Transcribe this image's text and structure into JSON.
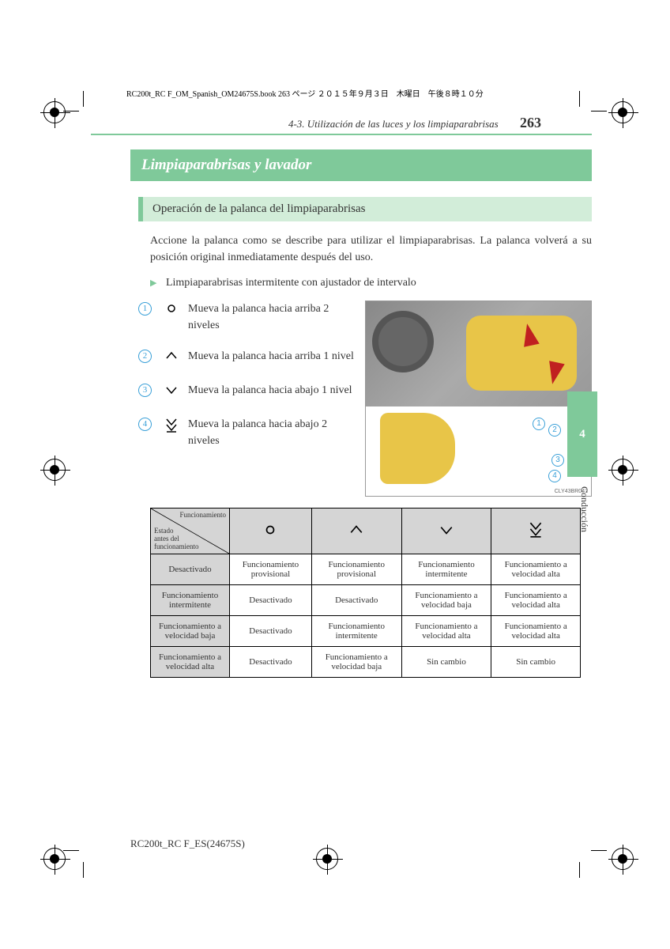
{
  "meta": {
    "header_line": "RC200t_RC F_OM_Spanish_OM24675S.book  263 ページ  ２０１５年９月３日　木曜日　午後８時１０分",
    "section": "4-3. Utilización de las luces y los limpiaparabrisas",
    "page_number": "263",
    "footer": "RC200t_RC F_ES(24675S)",
    "side_tab": "4",
    "side_label": "Conducción",
    "figure_code": "CLY43BR041"
  },
  "title": "Limpiaparabrisas y lavador",
  "subtitle": "Operación de la palanca del limpiaparabrisas",
  "intro": "Accione la palanca como se describe para utilizar el limpiaparabrisas. La palanca volverá a su posición original inmediatamente después del uso.",
  "bullet": "Limpiaparabrisas intermitente con ajustador de intervalo",
  "steps": [
    {
      "num": "1",
      "color": "#3aa0d8",
      "icon": "circle",
      "text": "Mueva la palanca hacia arriba 2 niveles"
    },
    {
      "num": "2",
      "color": "#3aa0d8",
      "icon": "tri-up",
      "text": "Mueva la palanca hacia arriba 1 nivel"
    },
    {
      "num": "3",
      "color": "#3aa0d8",
      "icon": "tri-down",
      "text": "Mueva la palanca hacia abajo 1 nivel"
    },
    {
      "num": "4",
      "color": "#3aa0d8",
      "icon": "tri-down-bar",
      "text": "Mueva la palanca hacia abajo 2 niveles"
    }
  ],
  "table": {
    "diag_top": "Funcionamiento",
    "diag_bottom": "Estado\nantes del\nfuncionamiento",
    "col_icons": [
      "circle",
      "tri-up",
      "tri-down",
      "tri-down-bar"
    ],
    "rows": [
      {
        "head": "Desactivado",
        "cells": [
          "Funcionamiento provisional",
          "Funcionamiento provisional",
          "Funcionamiento intermitente",
          "Funcionamiento a velocidad alta"
        ]
      },
      {
        "head": "Funcionamiento intermitente",
        "cells": [
          "Desactivado",
          "Desactivado",
          "Funcionamiento a velocidad baja",
          "Funcionamiento a velocidad alta"
        ]
      },
      {
        "head": "Funcionamiento a velocidad baja",
        "cells": [
          "Desactivado",
          "Funcionamiento intermitente",
          "Funcionamiento a velocidad alta",
          "Funcionamiento a velocidad alta"
        ]
      },
      {
        "head": "Funcionamiento a velocidad alta",
        "cells": [
          "Desactivado",
          "Funcionamiento a velocidad baja",
          "Sin cambio",
          "Sin cambio"
        ]
      }
    ]
  },
  "colors": {
    "accent": "#7fc99a",
    "accent_light": "#d2edd9",
    "callout": "#3aa0d8",
    "table_head": "#d5d5d5"
  }
}
